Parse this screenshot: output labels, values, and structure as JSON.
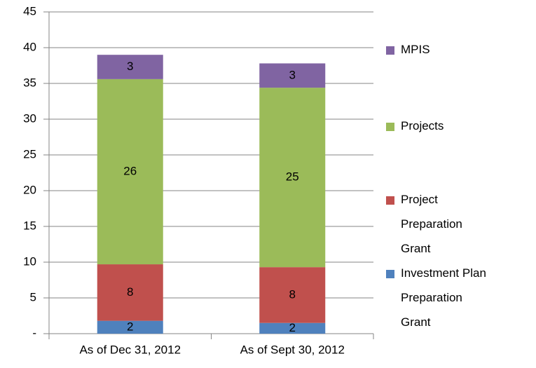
{
  "chart_data": {
    "type": "stacked_bar",
    "categories": [
      "As of Dec 31, 2012",
      "As of Sept 30, 2012"
    ],
    "series": [
      {
        "name": "Investment Plan Preparation Grant",
        "color": "#4f81bd",
        "values": [
          1.8,
          1.5
        ],
        "value_labels": [
          "2",
          "2"
        ]
      },
      {
        "name": "Project Preparation Grant",
        "color": "#c0504d",
        "values": [
          7.9,
          7.8
        ],
        "value_labels": [
          "8",
          "8"
        ]
      },
      {
        "name": "Projects",
        "color": "#9bbb59",
        "values": [
          25.9,
          25.1
        ],
        "value_labels": [
          "26",
          "25"
        ]
      },
      {
        "name": "MPIS",
        "color": "#8064a2",
        "values": [
          3.4,
          3.4
        ],
        "value_labels": [
          "3",
          "3"
        ]
      }
    ],
    "ylim": [
      0,
      45
    ],
    "yticks": [
      {
        "value": 0,
        "label": "-"
      },
      5,
      10,
      15,
      20,
      25,
      30,
      35,
      40,
      45
    ],
    "grid": true,
    "legend": "right"
  }
}
